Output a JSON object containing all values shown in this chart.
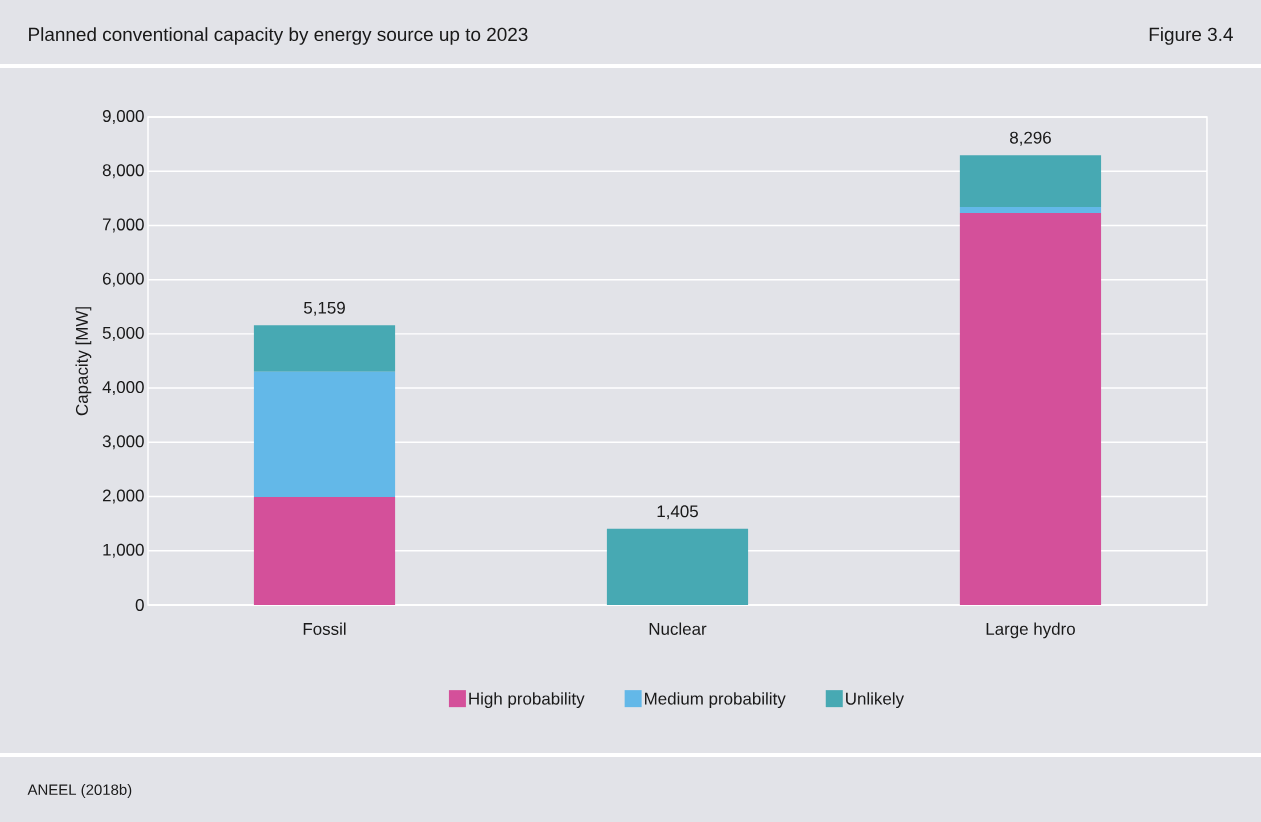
{
  "chart_data": {
    "type": "bar",
    "title": "Planned conventional capacity by energy source up to 2023",
    "ylabel": "Capacity  [MW]",
    "categories": [
      "Fossil",
      "Nuclear",
      "Large hydro"
    ],
    "series": [
      {
        "name": "High probability",
        "color": "#d4509a",
        "values": [
          1990,
          0,
          7230
        ]
      },
      {
        "name": "Medium probability",
        "color": "#63b8e8",
        "values": [
          2310,
          0,
          110
        ]
      },
      {
        "name": "Unlikely",
        "color": "#47a9b3",
        "values": [
          859,
          1405,
          956
        ]
      }
    ],
    "stacked": true,
    "totals": [
      "5,159",
      "1,405",
      "8,296"
    ],
    "ylim": [
      0,
      9000
    ],
    "yticks": [
      {
        "value": 0,
        "label": "0"
      },
      {
        "value": 1000,
        "label": "1,000"
      },
      {
        "value": 2000,
        "label": "2,000"
      },
      {
        "value": 3000,
        "label": "3,000"
      },
      {
        "value": 4000,
        "label": "4,000"
      },
      {
        "value": 5000,
        "label": "5,000"
      },
      {
        "value": 6000,
        "label": "6,000"
      },
      {
        "value": 7000,
        "label": "7,000"
      },
      {
        "value": 8000,
        "label": "8,000"
      },
      {
        "value": 9000,
        "label": "9,000"
      }
    ],
    "grid": "y",
    "legend": "bottom",
    "annotations": [
      "Figure 3.4",
      "ANEEL (2018b)"
    ]
  }
}
